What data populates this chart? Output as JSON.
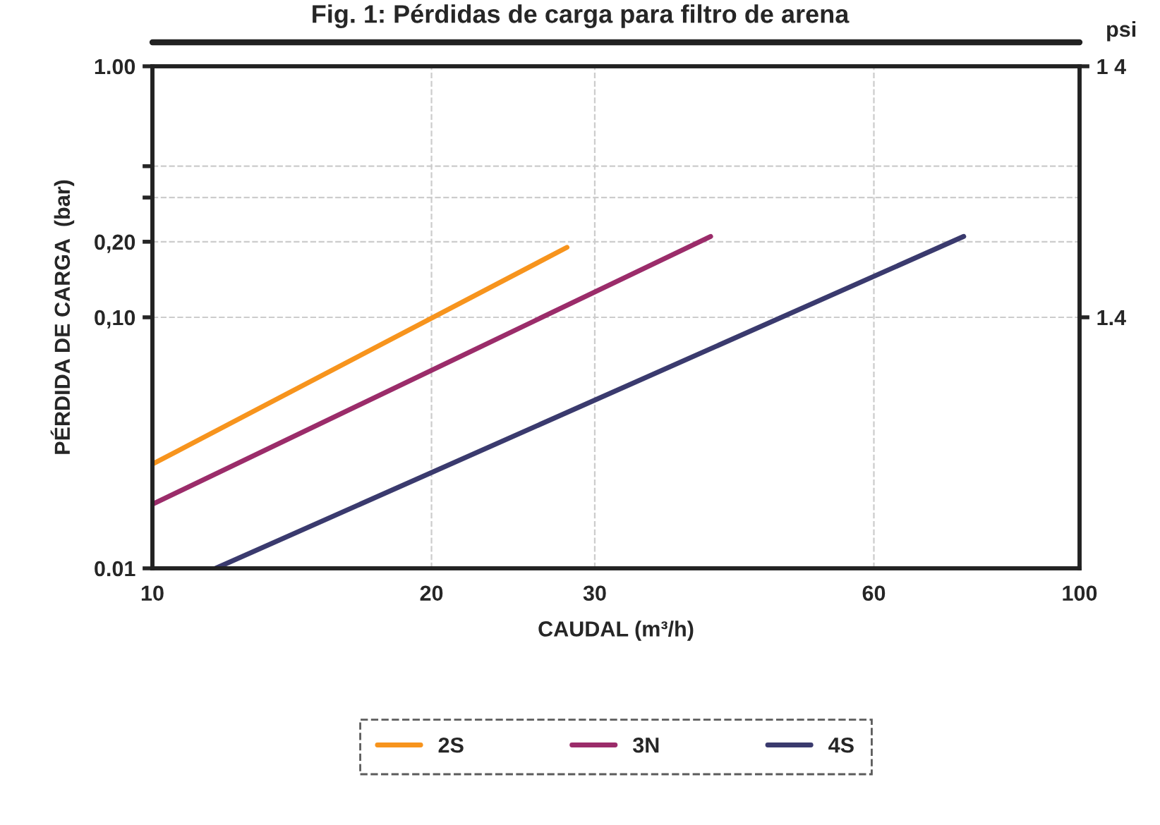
{
  "chart_data": {
    "type": "line",
    "title": "Fig. 1: Pérdidas de carga para filtro de arena",
    "xlabel": "CAUDAL (m³/h)",
    "ylabel": "PÉRDIDA DE CARGA  (bar)",
    "y2label": "psi",
    "log": "xy",
    "grid": true,
    "legend": "bottom",
    "marker": "none",
    "line_style": "solid",
    "xlim": [
      10,
      100
    ],
    "xticks": [
      10,
      20,
      30,
      60,
      100
    ],
    "annotations": [
      "1 4",
      "1.4"
    ],
    "ylim": [
      0.01,
      1.0
    ],
    "yticks": [
      {
        "value": 0.01,
        "label": "0.01"
      },
      {
        "value": 0.1,
        "label": "0,10"
      },
      {
        "value": 0.2,
        "label": "0,20"
      },
      {
        "value": 0.3,
        "label": null
      },
      {
        "value": 0.4,
        "label": null
      },
      {
        "value": 1.0,
        "label": "1.00"
      }
    ],
    "series": [
      {
        "name": "2S",
        "color": "#f7941d",
        "x": [
          10,
          28
        ],
        "values": [
          0.026,
          0.19
        ]
      },
      {
        "name": "3N",
        "color": "#9b2c6a",
        "x": [
          10,
          40
        ],
        "values": [
          0.018,
          0.21
        ]
      },
      {
        "name": "4S",
        "color": "#3a3a6e",
        "x": [
          11.7,
          75
        ],
        "values": [
          0.01,
          0.21
        ]
      }
    ]
  }
}
